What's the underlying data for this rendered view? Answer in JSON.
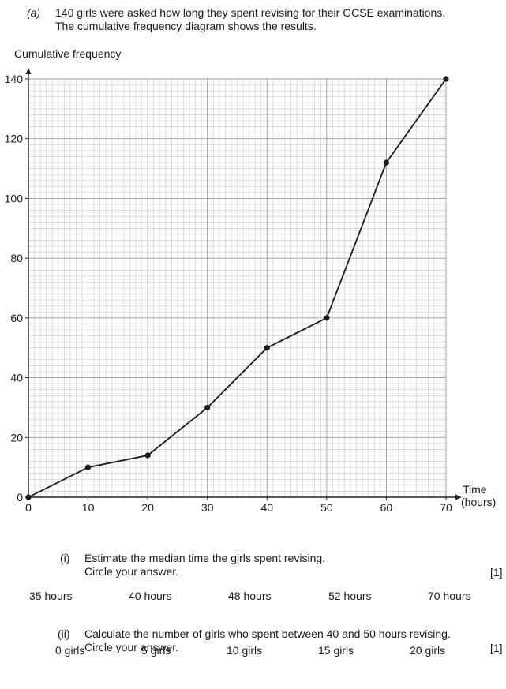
{
  "part_a": {
    "label": "(a)",
    "line1": "140 girls were asked how long they spent revising for their GCSE examinations.",
    "line2": "The cumulative frequency diagram shows the results."
  },
  "chart_data": {
    "type": "line",
    "ylabel": "Cumulative frequency",
    "xlabel_line1": "Time",
    "xlabel_line2": "(hours)",
    "x": [
      0,
      10,
      20,
      30,
      40,
      50,
      60,
      70
    ],
    "values": [
      0,
      10,
      14,
      30,
      50,
      60,
      112,
      140
    ],
    "xlim": [
      0,
      70
    ],
    "ylim": [
      0,
      140
    ],
    "x_ticks": [
      0,
      10,
      20,
      30,
      40,
      50,
      60,
      70
    ],
    "y_ticks": [
      0,
      20,
      40,
      60,
      80,
      100,
      120,
      140
    ],
    "grid": true,
    "markers": true
  },
  "part_i": {
    "label": "(i)",
    "line1": "Estimate the median time the girls spent revising.",
    "line2": "Circle your answer.",
    "marks": "[1]",
    "options": [
      "35 hours",
      "40 hours",
      "48 hours",
      "52 hours",
      "70 hours"
    ]
  },
  "part_ii": {
    "label": "(ii)",
    "line1": "Calculate the number of girls who spent between 40 and 50 hours revising.",
    "line2": "Circle your answer.",
    "marks": "[1]",
    "options": [
      "0 girls",
      "5 girls",
      "10 girls",
      "15 girls",
      "20 girls"
    ]
  }
}
